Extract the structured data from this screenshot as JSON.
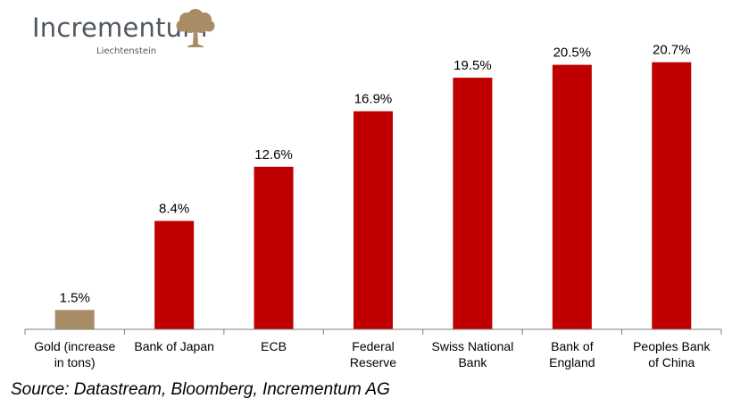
{
  "logo": {
    "name": "Incrementum",
    "subtitle": "Liechtenstein",
    "icon": "oak-tree-icon"
  },
  "source": "Source: Datastream, Bloomberg, Incrementum AG",
  "colors": {
    "gold": "#a88c65",
    "bank": "#c00000",
    "axis": "#7f7f7f",
    "logo_text": "#4f5760"
  },
  "chart_data": {
    "type": "bar",
    "title": "",
    "xlabel": "",
    "ylabel": "",
    "ylim": [
      0,
      24
    ],
    "grid": false,
    "legend": "none",
    "categories": [
      [
        "Gold (increase",
        "in tons)"
      ],
      [
        "Bank of Japan"
      ],
      [
        "ECB"
      ],
      [
        "Federal",
        "Reserve"
      ],
      [
        "Swiss National",
        "Bank"
      ],
      [
        "Bank of",
        "England"
      ],
      [
        "Peoples Bank",
        "of China"
      ]
    ],
    "values": [
      1.5,
      8.4,
      12.6,
      16.9,
      19.5,
      20.5,
      20.7
    ],
    "value_labels": [
      "1.5%",
      "8.4%",
      "12.6%",
      "16.9%",
      "19.5%",
      "20.5%",
      "20.7%"
    ],
    "bar_colors": [
      "#a88c65",
      "#c00000",
      "#c00000",
      "#c00000",
      "#c00000",
      "#c00000",
      "#c00000"
    ]
  }
}
